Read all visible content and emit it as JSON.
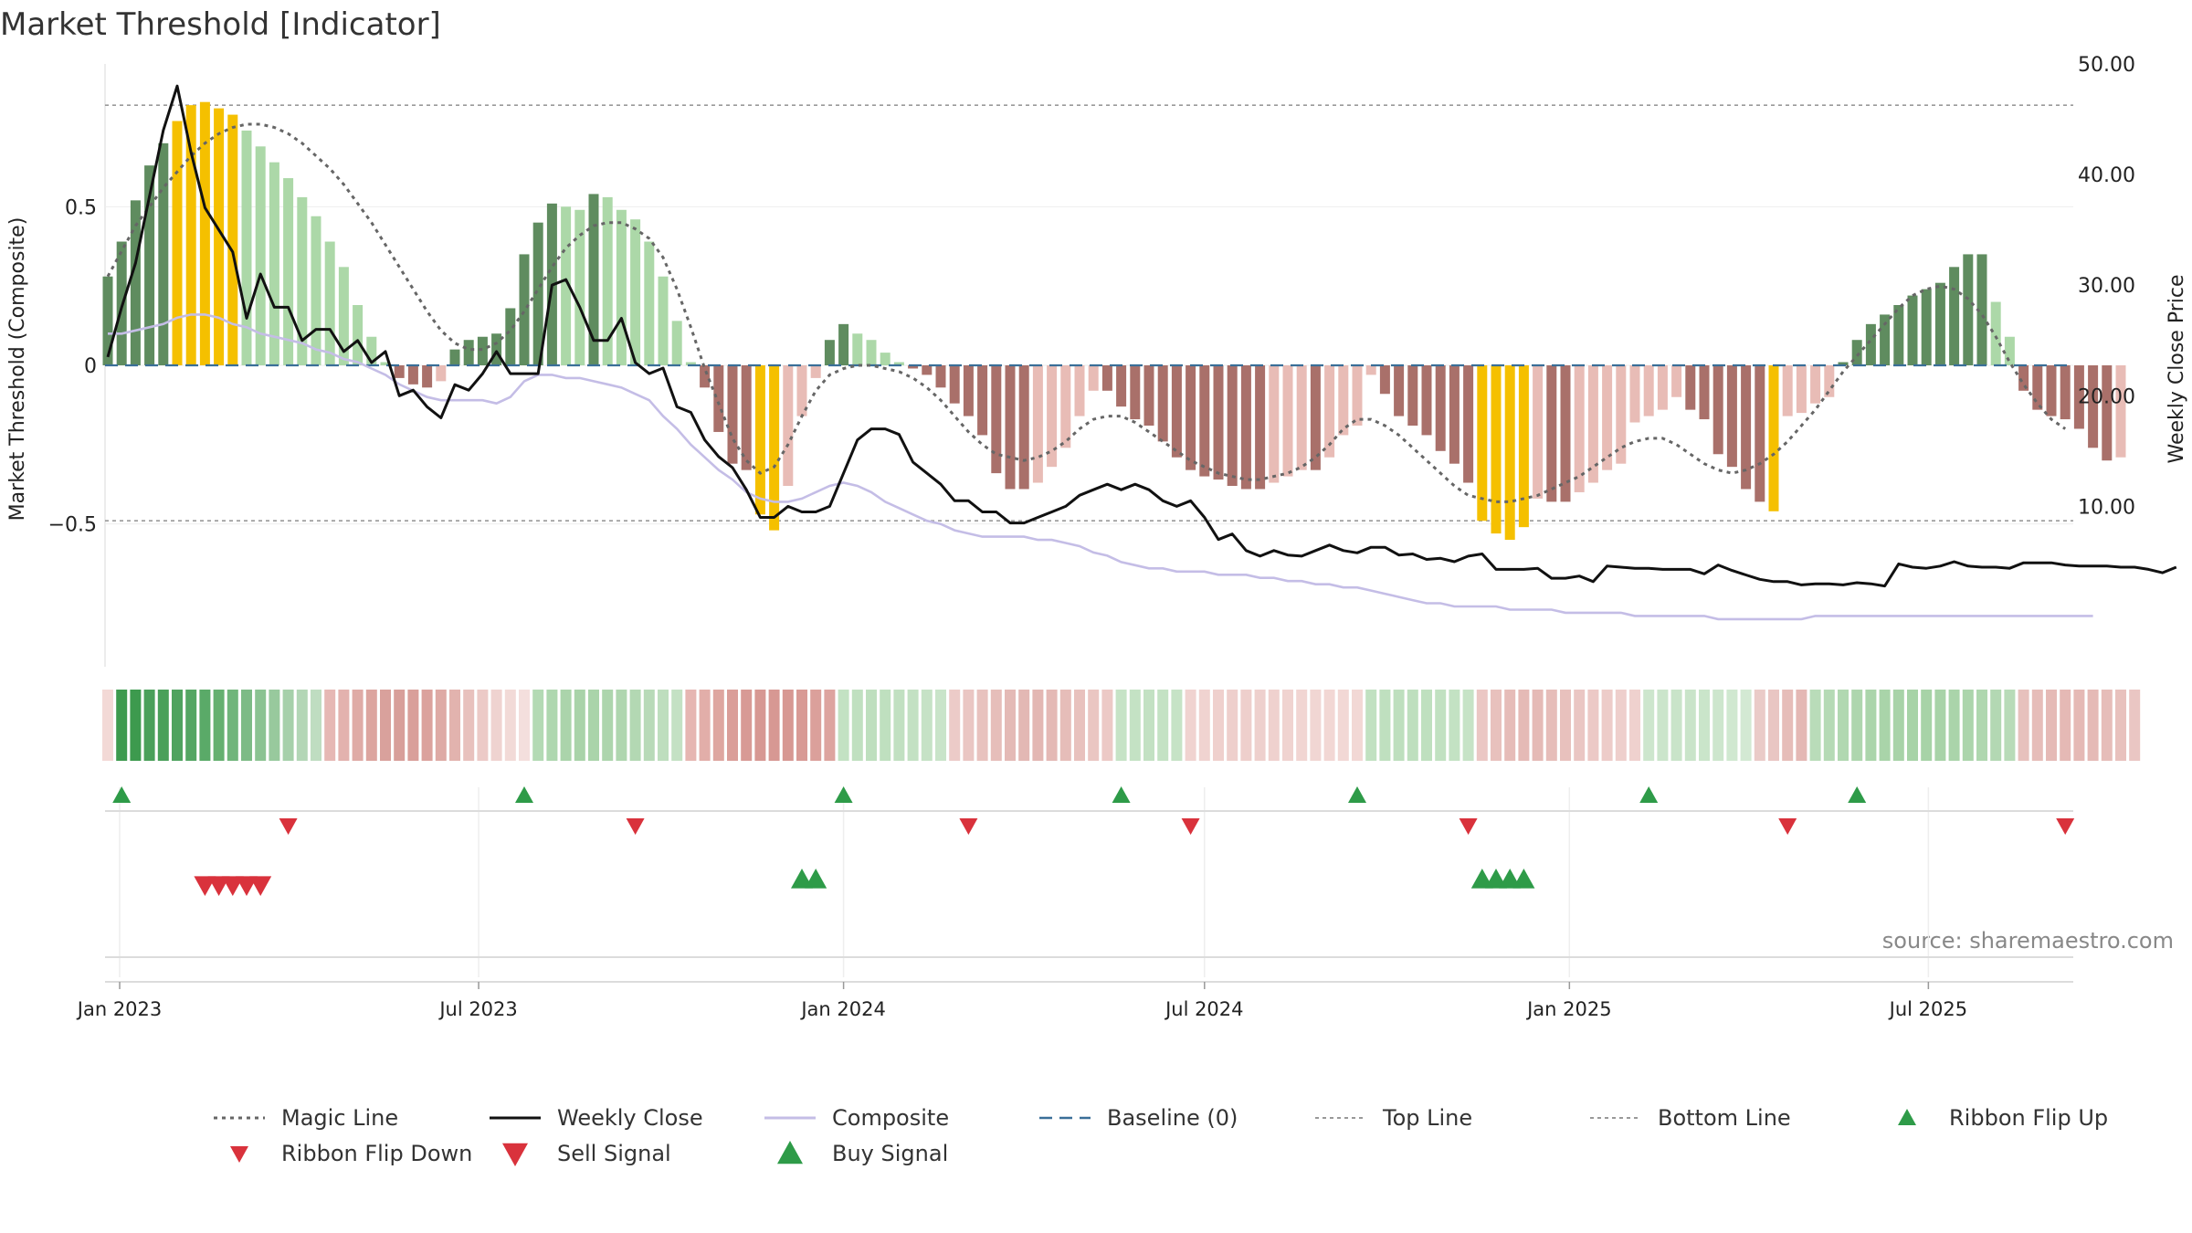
{
  "source": "source: sharemaestro.com",
  "colors": {
    "strong_pos": "#5f8c5f",
    "light_pos": "#acd8a8",
    "yellow": "#f5c000",
    "strong_neg": "#a9706a",
    "light_neg": "#e8bcb6",
    "magic": "#666666",
    "close": "#111111",
    "composite": "#c4bde6",
    "baseline": "#3a6f98",
    "threshold": "#999999",
    "buy": "#2e9b48",
    "sell": "#d9323c"
  },
  "chart_data": {
    "type": "bar",
    "title": "Market Threshold [Indicator]",
    "ylabel_left": "Market Threshold (Composite)",
    "ylabel_right": "Weekly Close Price",
    "ylim_left": [
      -0.95,
      0.95
    ],
    "ylim_right": [
      -4.5,
      50.0
    ],
    "yticks_left": [
      {
        "v": 0.5,
        "label": "0.5"
      },
      {
        "v": 0,
        "label": "0"
      },
      {
        "v": -0.5,
        "label": "−0.5"
      }
    ],
    "yticks_right": [
      {
        "v": 50,
        "label": "50.00"
      },
      {
        "v": 40,
        "label": "40.00"
      },
      {
        "v": 30,
        "label": "30.00"
      },
      {
        "v": 20,
        "label": "20.00"
      },
      {
        "v": 10,
        "label": "10.00"
      }
    ],
    "top_line": 0.82,
    "bottom_line": -0.49,
    "baseline": 0,
    "x_start": "2022-12-26",
    "xticks": [
      {
        "date": "2023-01-01",
        "label": "Jan 2023"
      },
      {
        "date": "2023-07-01",
        "label": "Jul 2023"
      },
      {
        "date": "2024-01-01",
        "label": "Jan 2024"
      },
      {
        "date": "2024-07-01",
        "label": "Jul 2024"
      },
      {
        "date": "2025-01-01",
        "label": "Jan 2025"
      },
      {
        "date": "2025-07-01",
        "label": "Jul 2025"
      }
    ],
    "composite_bars": [
      0.28,
      0.39,
      0.52,
      0.63,
      0.7,
      0.77,
      0.82,
      0.83,
      0.81,
      0.79,
      0.74,
      0.69,
      0.64,
      0.59,
      0.53,
      0.47,
      0.39,
      0.31,
      0.19,
      0.09,
      0.01,
      -0.04,
      -0.06,
      -0.07,
      -0.05,
      0.05,
      0.08,
      0.09,
      0.1,
      0.18,
      0.35,
      0.45,
      0.51,
      0.5,
      0.49,
      0.54,
      0.53,
      0.49,
      0.46,
      0.39,
      0.28,
      0.14,
      0.01,
      -0.07,
      -0.21,
      -0.31,
      -0.33,
      -0.47,
      -0.52,
      -0.38,
      -0.16,
      -0.04,
      0.08,
      0.13,
      0.1,
      0.08,
      0.04,
      0.01,
      -0.01,
      -0.03,
      -0.07,
      -0.12,
      -0.16,
      -0.22,
      -0.34,
      -0.39,
      -0.39,
      -0.37,
      -0.32,
      -0.26,
      -0.16,
      -0.08,
      -0.08,
      -0.13,
      -0.17,
      -0.19,
      -0.24,
      -0.29,
      -0.33,
      -0.35,
      -0.36,
      -0.38,
      -0.39,
      -0.39,
      -0.37,
      -0.35,
      -0.33,
      -0.33,
      -0.29,
      -0.22,
      -0.19,
      -0.03,
      -0.09,
      -0.16,
      -0.19,
      -0.22,
      -0.27,
      -0.31,
      -0.37,
      -0.49,
      -0.53,
      -0.55,
      -0.51,
      -0.42,
      -0.43,
      -0.43,
      -0.4,
      -0.37,
      -0.33,
      -0.31,
      -0.18,
      -0.16,
      -0.14,
      -0.1,
      -0.14,
      -0.17,
      -0.28,
      -0.32,
      -0.39,
      -0.43,
      -0.46,
      -0.16,
      -0.15,
      -0.12,
      -0.1,
      0.01,
      0.08,
      0.13,
      0.16,
      0.19,
      0.22,
      0.24,
      0.26,
      0.31,
      0.35,
      0.35,
      0.2,
      0.09,
      -0.08,
      -0.14,
      -0.16,
      -0.17,
      -0.2,
      -0.26,
      -0.3,
      -0.29
    ],
    "magic_line": [
      0.28,
      0.36,
      0.44,
      0.5,
      0.56,
      0.61,
      0.66,
      0.7,
      0.73,
      0.75,
      0.76,
      0.76,
      0.75,
      0.73,
      0.7,
      0.66,
      0.62,
      0.57,
      0.51,
      0.45,
      0.38,
      0.31,
      0.24,
      0.17,
      0.11,
      0.07,
      0.05,
      0.05,
      0.07,
      0.11,
      0.17,
      0.24,
      0.31,
      0.37,
      0.41,
      0.44,
      0.45,
      0.45,
      0.43,
      0.4,
      0.34,
      0.24,
      0.12,
      -0.01,
      -0.12,
      -0.23,
      -0.3,
      -0.34,
      -0.32,
      -0.25,
      -0.16,
      -0.08,
      -0.03,
      -0.01,
      0.0,
      0.0,
      -0.01,
      -0.02,
      -0.04,
      -0.07,
      -0.11,
      -0.16,
      -0.21,
      -0.25,
      -0.28,
      -0.29,
      -0.3,
      -0.29,
      -0.27,
      -0.24,
      -0.2,
      -0.17,
      -0.16,
      -0.16,
      -0.18,
      -0.21,
      -0.24,
      -0.27,
      -0.3,
      -0.32,
      -0.34,
      -0.35,
      -0.36,
      -0.36,
      -0.35,
      -0.34,
      -0.32,
      -0.29,
      -0.25,
      -0.2,
      -0.17,
      -0.17,
      -0.19,
      -0.22,
      -0.26,
      -0.3,
      -0.34,
      -0.38,
      -0.41,
      -0.42,
      -0.43,
      -0.43,
      -0.42,
      -0.41,
      -0.39,
      -0.37,
      -0.35,
      -0.32,
      -0.29,
      -0.26,
      -0.24,
      -0.23,
      -0.23,
      -0.25,
      -0.28,
      -0.31,
      -0.33,
      -0.34,
      -0.33,
      -0.31,
      -0.28,
      -0.24,
      -0.19,
      -0.14,
      -0.08,
      -0.02,
      0.03,
      0.08,
      0.13,
      0.18,
      0.22,
      0.24,
      0.25,
      0.24,
      0.21,
      0.16,
      0.09,
      0.01,
      -0.06,
      -0.12,
      -0.17,
      -0.2
    ],
    "weekly_close": [
      23.5,
      28,
      32,
      38,
      44,
      48,
      42,
      37,
      35,
      33,
      27,
      31,
      28,
      28,
      25,
      26,
      26,
      24,
      25,
      23,
      24,
      20,
      20.5,
      19,
      18,
      21,
      20.5,
      22,
      24,
      22,
      22,
      22,
      30,
      30.5,
      28,
      25,
      25,
      27,
      23,
      22,
      22.5,
      19,
      18.5,
      16,
      14.5,
      13.5,
      11.5,
      9,
      9,
      10,
      9.5,
      9.5,
      10,
      13,
      16,
      17,
      17,
      16.5,
      14,
      13,
      12,
      10.5,
      10.5,
      9.5,
      9.5,
      8.5,
      8.5,
      9,
      9.5,
      10,
      11,
      11.5,
      12,
      11.5,
      12,
      11.5,
      10.5,
      10,
      10.5,
      9,
      7,
      7.5,
      6,
      5.5,
      6,
      5.6,
      5.5,
      6,
      6.5,
      6,
      5.8,
      6.3,
      6.3,
      5.6,
      5.7,
      5.2,
      5.3,
      5,
      5.5,
      5.7,
      4.3,
      4.3,
      4.3,
      4.4,
      3.5,
      3.5,
      3.7,
      3.2,
      4.6,
      4.5,
      4.4,
      4.4,
      4.3,
      4.3,
      4.3,
      3.9,
      4.7,
      4.2,
      3.8,
      3.4,
      3.2,
      3.2,
      2.9,
      3,
      3,
      2.9,
      3.1,
      3,
      2.8,
      4.8,
      4.5,
      4.4,
      4.6,
      5,
      4.6,
      4.5,
      4.5,
      4.4,
      4.9,
      4.9,
      4.9,
      4.7,
      4.6,
      4.6,
      4.6,
      4.5,
      4.5,
      4.3,
      4.0,
      4.5
    ],
    "composite_line": [
      0.1,
      0.1,
      0.11,
      0.12,
      0.13,
      0.15,
      0.16,
      0.16,
      0.15,
      0.13,
      0.12,
      0.1,
      0.09,
      0.08,
      0.07,
      0.05,
      0.04,
      0.02,
      0.01,
      -0.01,
      -0.03,
      -0.06,
      -0.08,
      -0.1,
      -0.11,
      -0.11,
      -0.11,
      -0.11,
      -0.12,
      -0.1,
      -0.05,
      -0.03,
      -0.03,
      -0.04,
      -0.04,
      -0.05,
      -0.06,
      -0.07,
      -0.09,
      -0.11,
      -0.16,
      -0.2,
      -0.25,
      -0.29,
      -0.33,
      -0.36,
      -0.4,
      -0.42,
      -0.43,
      -0.43,
      -0.42,
      -0.4,
      -0.38,
      -0.37,
      -0.38,
      -0.4,
      -0.43,
      -0.45,
      -0.47,
      -0.49,
      -0.5,
      -0.52,
      -0.53,
      -0.54,
      -0.54,
      -0.54,
      -0.54,
      -0.55,
      -0.55,
      -0.56,
      -0.57,
      -0.59,
      -0.6,
      -0.62,
      -0.63,
      -0.64,
      -0.64,
      -0.65,
      -0.65,
      -0.65,
      -0.66,
      -0.66,
      -0.66,
      -0.67,
      -0.67,
      -0.68,
      -0.68,
      -0.69,
      -0.69,
      -0.7,
      -0.7,
      -0.71,
      -0.72,
      -0.73,
      -0.74,
      -0.75,
      -0.75,
      -0.76,
      -0.76,
      -0.76,
      -0.76,
      -0.77,
      -0.77,
      -0.77,
      -0.77,
      -0.78,
      -0.78,
      -0.78,
      -0.78,
      -0.78,
      -0.79,
      -0.79,
      -0.79,
      -0.79,
      -0.79,
      -0.79,
      -0.8,
      -0.8,
      -0.8,
      -0.8,
      -0.8,
      -0.8,
      -0.8,
      -0.79,
      -0.79,
      -0.79,
      -0.79,
      -0.79,
      -0.79,
      -0.79,
      -0.79,
      -0.79,
      -0.79,
      -0.79,
      -0.79,
      -0.79,
      -0.79,
      -0.79,
      -0.79,
      -0.79,
      -0.79,
      -0.79,
      -0.79,
      -0.79
    ],
    "ribbon_colors": [
      "#f3d9d6",
      "#3d9a4e",
      "#3d9a4e",
      "#4aa05a",
      "#4aa05a",
      "#4fa35f",
      "#54a663",
      "#5aaa68",
      "#65b070",
      "#70b57b",
      "#7dbb86",
      "#8bc392",
      "#98c99d",
      "#a6d0aa",
      "#b3d6b6",
      "#bfddc1",
      "#e6b8b4",
      "#e3b2ae",
      "#dfaba6",
      "#dca59f",
      "#d9a19c",
      "#d89f9a",
      "#d99f9a",
      "#dba29d",
      "#deaaa5",
      "#e2b3ae",
      "#e8c1bd",
      "#eccac7",
      "#efd3d0",
      "#f2dad7",
      "#f4dfdd",
      "#b3dab4",
      "#aed7af",
      "#abd4ab",
      "#a9d3a9",
      "#aad4aa",
      "#add5ad",
      "#afd6af",
      "#b3d8b3",
      "#b8dab8",
      "#bedebe",
      "#c4e1c4",
      "#e6b6b2",
      "#e2aea9",
      "#dea6a0",
      "#da9e99",
      "#d89a95",
      "#d79893",
      "#d79893",
      "#d79893",
      "#d89a95",
      "#dba09b",
      "#dda49f",
      "#c3e2c3",
      "#c0e0c0",
      "#bedfbe",
      "#bfe0bf",
      "#c1e0c1",
      "#c3e1c3",
      "#c6e2c6",
      "#c9e4c9",
      "#eccbc8",
      "#eac6c3",
      "#e8c2be",
      "#e6beba",
      "#e4bab6",
      "#e3b8b4",
      "#e3b7b3",
      "#e4b9b5",
      "#e6bdb9",
      "#e8c1bd",
      "#eac6c2",
      "#ecc9c6",
      "#c6e3c6",
      "#c4e2c4",
      "#c3e1c3",
      "#c4e2c4",
      "#c6e3c6",
      "#f0d3d0",
      "#f0d3d0",
      "#efd0cd",
      "#eecfcc",
      "#eecfcc",
      "#eed0cd",
      "#efd1ce",
      "#f0d3d0",
      "#f1d5d2",
      "#f1d6d3",
      "#f2d7d4",
      "#f2d8d5",
      "#f2d8d5",
      "#c1e1c1",
      "#bfe0bf",
      "#bedfbe",
      "#bedfbe",
      "#bfe0bf",
      "#c1e1c1",
      "#c3e2c3",
      "#c6e3c6",
      "#ebc7c4",
      "#e8c1bd",
      "#e6bcb8",
      "#e5bab6",
      "#e5bab6",
      "#e6bdb9",
      "#e8c1bd",
      "#eac6c3",
      "#ecc9c6",
      "#edccc9",
      "#eecfcc",
      "#efd1ce",
      "#cde6cd",
      "#cbe5cb",
      "#c9e4c9",
      "#c9e4c9",
      "#cae5ca",
      "#cde6cd",
      "#d0e8d0",
      "#d3e9d3",
      "#eacbc8",
      "#e9c6c3",
      "#e6bdb9",
      "#e4b8b4",
      "#b9dcb9",
      "#b5dab5",
      "#b1d8b1",
      "#aed6ae",
      "#abd5ab",
      "#a9d4a9",
      "#a8d3a8",
      "#a7d3a7",
      "#a7d3a7",
      "#a8d3a8",
      "#aad4aa",
      "#acd5ac",
      "#afd7af",
      "#b3d8b3",
      "#b8dbb8",
      "#e7c1bd",
      "#e6bdb9",
      "#e5bab6",
      "#e5b9b5",
      "#e5b9b5",
      "#e5bab6",
      "#e6bdb9",
      "#e8c1bd",
      "#eac6c3"
    ],
    "flip_up_dates": [
      "2023-01-02",
      "2023-07-24",
      "2024-01-01",
      "2024-05-20",
      "2024-09-16",
      "2025-02-10",
      "2025-05-26"
    ],
    "flip_down_dates": [
      "2023-03-27",
      "2023-09-18",
      "2024-03-04",
      "2024-06-24",
      "2024-11-11",
      "2025-04-21",
      "2025-09-08"
    ],
    "sell_signal_dates": [
      "2023-02-13",
      "2023-02-20",
      "2023-02-27",
      "2023-03-06",
      "2023-03-13"
    ],
    "buy_signal_dates": [
      "2023-12-11",
      "2023-12-18",
      "2024-11-18",
      "2024-11-25",
      "2024-12-02",
      "2024-12-09"
    ],
    "legend": [
      {
        "key": "magic",
        "label": "Magic Line",
        "style": "dotted"
      },
      {
        "key": "close",
        "label": "Weekly Close",
        "style": "solid"
      },
      {
        "key": "composite",
        "label": "Composite",
        "style": "solid"
      },
      {
        "key": "baseline",
        "label": "Baseline (0)",
        "style": "dashed"
      },
      {
        "key": "top",
        "label": "Top Line",
        "style": "dashed-thin"
      },
      {
        "key": "bottom",
        "label": "Bottom Line",
        "style": "dashed-thin"
      },
      {
        "key": "flip_up",
        "label": "Ribbon Flip Up",
        "style": "tri-up-sm"
      },
      {
        "key": "flip_down",
        "label": "Ribbon Flip Down",
        "style": "tri-down-sm"
      },
      {
        "key": "sell",
        "label": "Sell Signal",
        "style": "tri-down-lg"
      },
      {
        "key": "buy",
        "label": "Buy Signal",
        "style": "tri-up-lg"
      }
    ]
  }
}
